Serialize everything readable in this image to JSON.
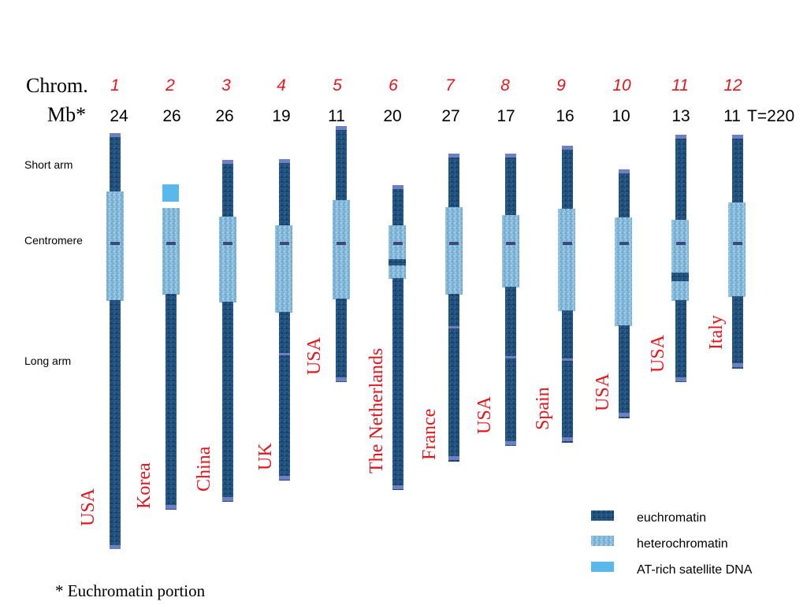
{
  "header": {
    "chrom_label": "Chrom.",
    "mb_label": "Mb*",
    "total_label": "T=220"
  },
  "side_labels": {
    "short_arm": "Short arm",
    "centromere": "Centromere",
    "long_arm": "Long arm"
  },
  "chromosomes": [
    {
      "number": "1",
      "mb": "24",
      "country": "USA"
    },
    {
      "number": "2",
      "mb": "26",
      "country": "Korea"
    },
    {
      "number": "3",
      "mb": "26",
      "country": "China"
    },
    {
      "number": "4",
      "mb": "19",
      "country": "UK"
    },
    {
      "number": "5",
      "mb": "11",
      "country": "USA"
    },
    {
      "number": "6",
      "mb": "20",
      "country": "The Netherlands"
    },
    {
      "number": "7",
      "mb": "27",
      "country": "France"
    },
    {
      "number": "8",
      "mb": "17",
      "country": "USA"
    },
    {
      "number": "9",
      "mb": "16",
      "country": "Spain"
    },
    {
      "number": "10",
      "mb": "10",
      "country": "USA"
    },
    {
      "number": "11",
      "mb": "13",
      "country": "USA"
    },
    {
      "number": "12",
      "mb": "11",
      "country": "Italy"
    }
  ],
  "legend": {
    "euchromatin": "euchromatin",
    "heterochromatin": "heterochromatin",
    "satellite": "AT-rich satellite DNA"
  },
  "footnote": "* Euchromatin portion",
  "colors": {
    "euchromatin": "#1f4e79",
    "heterochromatin": "#7fb5d8",
    "satellite": "#5bb8ec",
    "cap": "#6f7fc4",
    "number_red": "#e8141c",
    "country_red": "#e8141c"
  }
}
